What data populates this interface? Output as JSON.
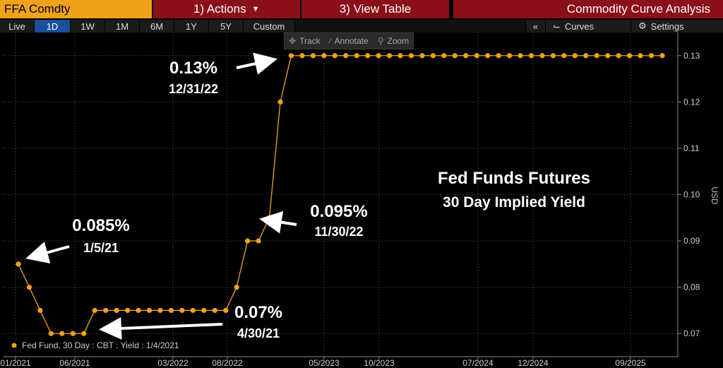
{
  "topbar": {
    "ticker": "FFA Comdty",
    "actions": "1) Actions",
    "view_table": "3) View Table",
    "analysis": "Commodity Curve Analysis"
  },
  "ranges": [
    "Live",
    "1D",
    "1W",
    "1M",
    "6M",
    "1Y",
    "5Y",
    "Custom"
  ],
  "active_range": "1D",
  "right_controls": {
    "collapse": "«",
    "curves": "Curves",
    "settings": "Settings"
  },
  "chart_tools": {
    "track": "Track",
    "annotate": "Annotate",
    "zoom": "Zoom"
  },
  "chart_data": {
    "type": "line",
    "ylabel": "USD",
    "ylim": [
      0.065,
      0.135
    ],
    "y_ticks": [
      "0.07",
      "0.08",
      "0.09",
      "0.10",
      "0.11",
      "0.12",
      "0.13"
    ],
    "x_ticks": [
      "01/2021",
      "06/2021",
      "03/2022",
      "08/2022",
      "05/2023",
      "10/2023",
      "07/2024",
      "12/2024",
      "09/2025"
    ],
    "series": [
      {
        "name": "Fed Fund, 30 Day : CBT : Yield : 1/4/2021",
        "color": "#f0a21a",
        "values": [
          0.085,
          0.08,
          0.075,
          0.07,
          0.07,
          0.07,
          0.07,
          0.075,
          0.075,
          0.075,
          0.075,
          0.075,
          0.075,
          0.075,
          0.075,
          0.075,
          0.075,
          0.075,
          0.075,
          0.075,
          0.08,
          0.09,
          0.09,
          0.095,
          0.12,
          0.13,
          0.13,
          0.13,
          0.13,
          0.13,
          0.13,
          0.13,
          0.13,
          0.13,
          0.13,
          0.13,
          0.13,
          0.13,
          0.13,
          0.13,
          0.13,
          0.13,
          0.13,
          0.13,
          0.13,
          0.13,
          0.13,
          0.13,
          0.13,
          0.13,
          0.13,
          0.13,
          0.13,
          0.13,
          0.13,
          0.13,
          0.13,
          0.13,
          0.13,
          0.13
        ]
      }
    ],
    "title": "Fed Funds Futures",
    "subtitle": "30 Day Implied Yield",
    "annotations": [
      {
        "value": "0.085%",
        "date": "1/5/21"
      },
      {
        "value": "0.07%",
        "date": "4/30/21"
      },
      {
        "value": "0.095%",
        "date": "11/30/22"
      },
      {
        "value": "0.13%",
        "date": "12/31/22"
      }
    ],
    "legend_position": "bottom-left",
    "grid": true
  }
}
